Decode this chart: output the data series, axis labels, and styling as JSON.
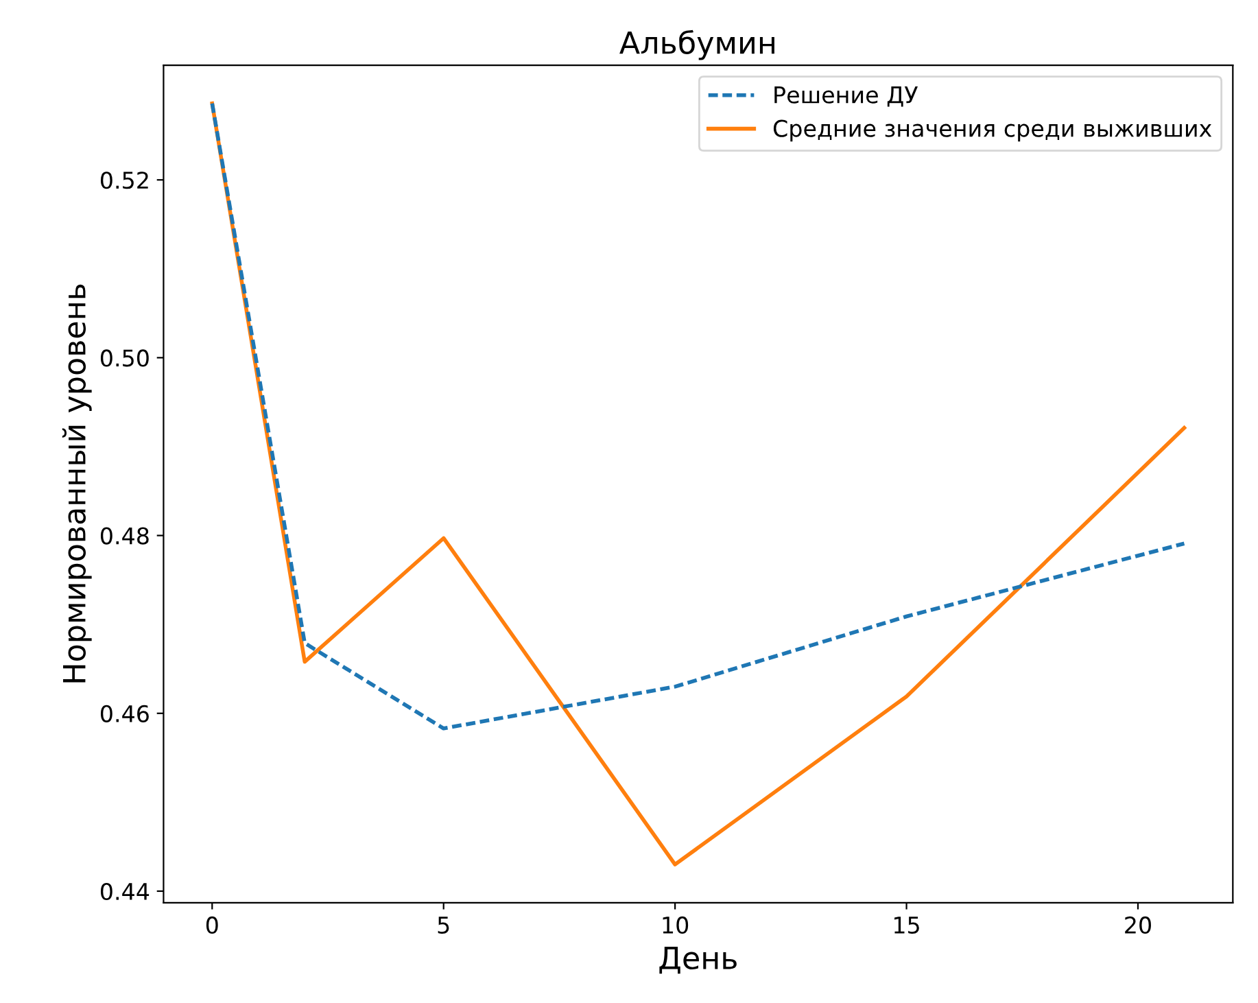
{
  "chart_data": {
    "type": "line",
    "title": "Альбумин",
    "xlabel": "День",
    "ylabel": "Нормированный уровень",
    "x": [
      0,
      2,
      5,
      10,
      15,
      21
    ],
    "series": [
      {
        "name": "Решение ДУ",
        "color": "#1f77b4",
        "line_style": "dashed",
        "values": [
          0.5286,
          0.4679,
          0.4583,
          0.463,
          0.4709,
          0.4791
        ]
      },
      {
        "name": "Средние значения среди выживших",
        "color": "#ff7f0e",
        "line_style": "solid",
        "values": [
          0.5286,
          0.4658,
          0.4797,
          0.443,
          0.4619,
          0.4921
        ]
      }
    ],
    "xlim": [
      -1.05,
      22.05
    ],
    "xticks": [
      0,
      5,
      10,
      15,
      20
    ],
    "ylim": [
      0.4387,
      0.5329
    ],
    "yticks": [
      {
        "value": 0.44,
        "label": "0.44"
      },
      {
        "value": 0.46,
        "label": "0.46"
      },
      {
        "value": 0.48,
        "label": "0.48"
      },
      {
        "value": 0.5,
        "label": "0.50"
      },
      {
        "value": 0.52,
        "label": "0.52"
      }
    ],
    "legend": "upper right",
    "grid": false
  }
}
